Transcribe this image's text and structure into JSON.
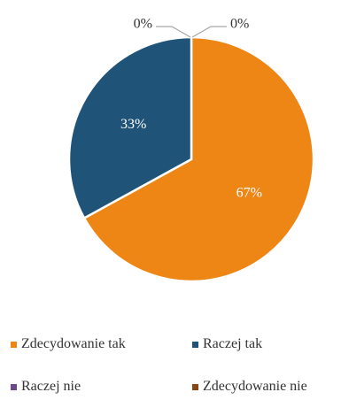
{
  "chart_data": {
    "type": "pie",
    "categories": [
      "Zdecydowanie tak",
      "Raczej tak",
      "Raczej nie",
      "Zdecydowanie nie"
    ],
    "values": [
      67,
      33,
      0,
      0
    ],
    "data_labels": [
      "67%",
      "33%",
      "0%",
      "0%"
    ],
    "colors": [
      "#ee8616",
      "#1f5478",
      "#6a4a8c",
      "#8b4513"
    ],
    "legend_position": "bottom",
    "title": ""
  }
}
